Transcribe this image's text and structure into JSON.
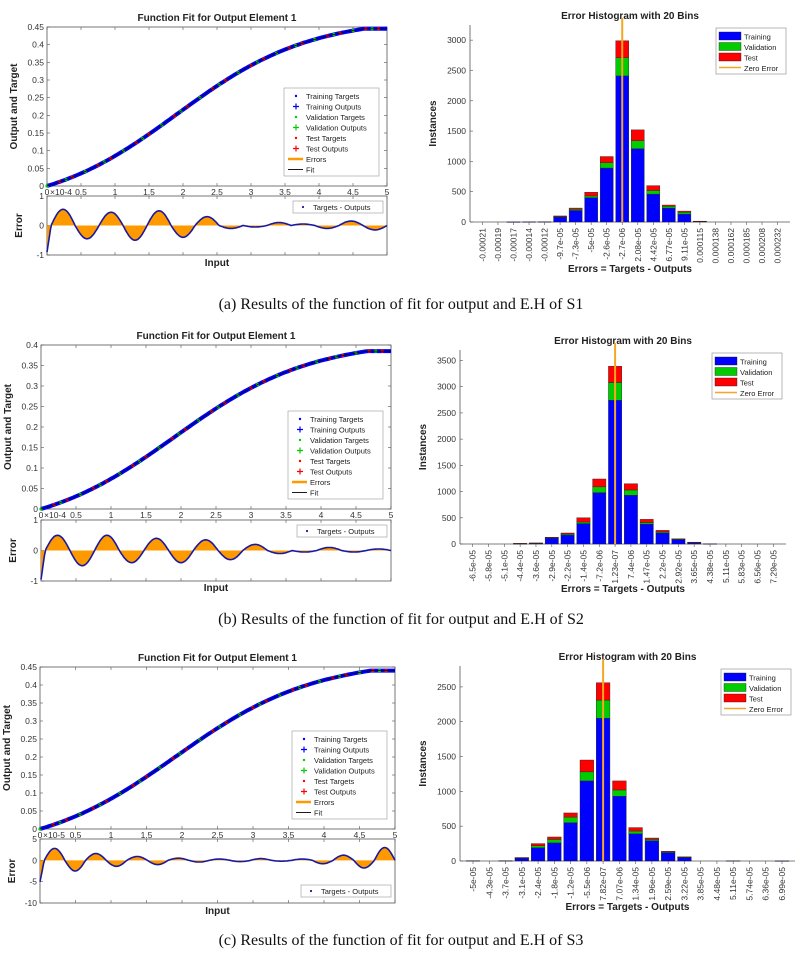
{
  "captions": [
    "(a)  Results of the function of fit for output and E.H of S1",
    "(b)  Results of the function of fit for output and E.H of S2",
    "(c)  Results of the function of fit for output and E.H of S3"
  ],
  "colors": {
    "training": "#0000ff",
    "validation": "#00cc00",
    "test": "#ff0000",
    "zero_error": "#f5a623",
    "errors_fill": "#ff9900",
    "fit": "#000000"
  },
  "chart_data": [
    {
      "id": "s1-fit",
      "type": "line",
      "title": "Function Fit for Output Element 1",
      "xlabel": "Input",
      "ylabel": "Output and Target",
      "xlim": [
        0,
        5
      ],
      "ylim": [
        0,
        0.45
      ],
      "xticks": [
        "0",
        "0.5",
        "1",
        "1.5",
        "2",
        "2.5",
        "3",
        "3.5",
        "4",
        "4.5",
        "5"
      ],
      "yticks": [
        "0",
        "0.05",
        "0.1",
        "0.15",
        "0.2",
        "0.25",
        "0.3",
        "0.35",
        "0.4",
        "0.45"
      ],
      "y_max_value": 0.445,
      "legend": [
        "Training Targets",
        "Training Outputs",
        "Validation Targets",
        "Validation Outputs",
        "Test Targets",
        "Test Outputs",
        "Errors",
        "Fit"
      ],
      "legend_position": "bottom-right",
      "error_subplot": {
        "ylabel": "Error",
        "yticks": [
          "-1",
          "0",
          "1"
        ],
        "ylim": [
          -1,
          1
        ],
        "scale_label": "×10^-4",
        "legend": [
          "Targets - Outputs"
        ],
        "legend_position": "top-right",
        "oscillation": {
          "peaks": [
            0.55,
            -0.45,
            0.45,
            -0.5,
            0.5,
            -0.4,
            0.3,
            -0.1,
            -0.05,
            0.1,
            0.05,
            -0.1,
            0.15,
            -0.15
          ],
          "start_value": -0.9
        }
      }
    },
    {
      "id": "s1-hist",
      "type": "bar",
      "title": "Error Histogram with 20 Bins",
      "xlabel": "Errors = Targets - Outputs",
      "ylabel": "Instances",
      "ylim": [
        0,
        3250
      ],
      "yticks": [
        "0",
        "500",
        "1000",
        "1500",
        "2000",
        "2500",
        "3000"
      ],
      "categories": [
        "-0.00021",
        "-0.00019",
        "-0.00017",
        "-0.00014",
        "-0.00012",
        "-9.7e-05",
        "-7.3e-05",
        "-5e-05",
        "-2.6e-05",
        "-2.7e-06",
        "2.08e-05",
        "4.42e-05",
        "6.77e-05",
        "9.11e-05",
        "0.000115",
        "0.000138",
        "0.000162",
        "0.000185",
        "0.000208",
        "0.000232"
      ],
      "series": [
        {
          "name": "Training",
          "values": [
            0,
            0,
            2,
            3,
            5,
            80,
            190,
            400,
            890,
            2410,
            1210,
            460,
            230,
            130,
            10,
            0,
            0,
            0,
            0,
            0
          ]
        },
        {
          "name": "Validation",
          "values": [
            0,
            0,
            0,
            0,
            0,
            10,
            20,
            30,
            90,
            300,
            130,
            60,
            30,
            30,
            2,
            0,
            0,
            0,
            0,
            0
          ]
        },
        {
          "name": "Test",
          "values": [
            0,
            0,
            0,
            0,
            0,
            10,
            20,
            60,
            100,
            280,
            180,
            80,
            20,
            20,
            2,
            0,
            0,
            0,
            0,
            0
          ]
        }
      ],
      "zero_error_bin": 9,
      "legend": [
        "Training",
        "Validation",
        "Test",
        "Zero Error"
      ],
      "legend_position": "top-right"
    },
    {
      "id": "s2-fit",
      "type": "line",
      "title": "Function Fit for Output Element 1",
      "xlabel": "Input",
      "ylabel": "Output and Target",
      "xlim": [
        0,
        5
      ],
      "ylim": [
        0,
        0.4
      ],
      "xticks": [
        "0",
        "0.5",
        "1",
        "1.5",
        "2",
        "2.5",
        "3",
        "3.5",
        "4",
        "4.5",
        "5"
      ],
      "yticks": [
        "0",
        "0.05",
        "0.1",
        "0.15",
        "0.2",
        "0.25",
        "0.3",
        "0.35",
        "0.4"
      ],
      "y_max_value": 0.385,
      "legend": [
        "Training Targets",
        "Training Outputs",
        "Validation Targets",
        "Validation Outputs",
        "Test Targets",
        "Test Outputs",
        "Errors",
        "Fit"
      ],
      "legend_position": "bottom-right",
      "error_subplot": {
        "ylabel": "Error",
        "yticks": [
          "-1",
          "0",
          "1"
        ],
        "ylim": [
          -1,
          1
        ],
        "scale_label": "×10^-4",
        "legend": [
          "Targets - Outputs"
        ],
        "legend_position": "top-right",
        "oscillation": {
          "peaks": [
            0.5,
            -0.5,
            0.5,
            -0.4,
            0.4,
            -0.4,
            0.35,
            -0.3,
            0.2,
            -0.1,
            -0.05,
            0.1,
            -0.05,
            0.05
          ],
          "start_value": -0.95
        }
      }
    },
    {
      "id": "s2-hist",
      "type": "bar",
      "title": "Error Histogram with 20 Bins",
      "xlabel": "Errors = Targets - Outputs",
      "ylabel": "Instances",
      "ylim": [
        0,
        3700
      ],
      "yticks": [
        "0",
        "500",
        "1000",
        "1500",
        "2000",
        "2500",
        "3000",
        "3500"
      ],
      "categories": [
        "-6.5e-05",
        "-5.8e-05",
        "-5.1e-05",
        "-4.4e-05",
        "-3.6e-05",
        "-2.9e-05",
        "-2.2e-05",
        "-1.4e-05",
        "-7.2e-06",
        "1.23e-07",
        "7.4e-06",
        "1.47e-05",
        "2.2e-05",
        "2.92e-05",
        "3.65e-05",
        "4.38e-05",
        "5.11e-05",
        "5.83e-05",
        "6.56e-05",
        "7.29e-05"
      ],
      "series": [
        {
          "name": "Training",
          "values": [
            0,
            0,
            0,
            8,
            15,
            110,
            170,
            390,
            980,
            2740,
            930,
            380,
            210,
            80,
            25,
            5,
            0,
            0,
            0,
            0
          ]
        },
        {
          "name": "Validation",
          "values": [
            0,
            0,
            0,
            2,
            3,
            10,
            20,
            30,
            110,
            340,
            100,
            30,
            20,
            10,
            5,
            0,
            0,
            0,
            0,
            0
          ]
        },
        {
          "name": "Test",
          "values": [
            0,
            0,
            0,
            2,
            2,
            10,
            20,
            80,
            150,
            310,
            120,
            60,
            30,
            10,
            5,
            0,
            0,
            0,
            0,
            0
          ]
        }
      ],
      "zero_error_bin": 9,
      "legend": [
        "Training",
        "Validation",
        "Test",
        "Zero Error"
      ],
      "legend_position": "top-right"
    },
    {
      "id": "s3-fit",
      "type": "line",
      "title": "Function Fit for Output Element 1",
      "xlabel": "Input",
      "ylabel": "Output and Target",
      "xlim": [
        0,
        5
      ],
      "ylim": [
        0,
        0.45
      ],
      "xticks": [
        "0",
        "0.5",
        "1",
        "1.5",
        "2",
        "2.5",
        "3",
        "3.5",
        "4",
        "4.5",
        "5"
      ],
      "yticks": [
        "0",
        "0.05",
        "0.1",
        "0.15",
        "0.2",
        "0.25",
        "0.3",
        "0.35",
        "0.4",
        "0.45"
      ],
      "y_max_value": 0.44,
      "legend": [
        "Training Targets",
        "Training Outputs",
        "Validation Targets",
        "Validation Outputs",
        "Test Targets",
        "Test Outputs",
        "Errors",
        "Fit"
      ],
      "legend_position": "bottom-right",
      "error_subplot": {
        "ylabel": "Error",
        "yticks": [
          "-10",
          "-5",
          "0",
          "5"
        ],
        "ylim": [
          -10,
          5
        ],
        "scale_label": "×10^-5",
        "legend": [
          "Targets - Outputs"
        ],
        "legend_position": "bottom-right",
        "oscillation": {
          "peaks": [
            2.8,
            -2.5,
            1.6,
            -1.4,
            0.9,
            -1.0,
            0.5,
            -0.4,
            0.3,
            -0.3,
            0.4,
            -0.2,
            0.3,
            -0.8,
            1.2,
            -1.8,
            3
          ],
          "start_value": -5
        }
      }
    },
    {
      "id": "s3-hist",
      "type": "bar",
      "title": "Error Histogram with 20 Bins",
      "xlabel": "Errors = Targets - Outputs",
      "ylabel": "Instances",
      "ylim": [
        0,
        2800
      ],
      "yticks": [
        "0",
        "500",
        "1000",
        "1500",
        "2000",
        "2500"
      ],
      "categories": [
        "-5e-05",
        "-4.3e-05",
        "-3.7e-05",
        "-3.1e-05",
        "-2.4e-05",
        "-1.8e-05",
        "-1.2e-05",
        "-5.5e-06",
        "7.82e-07",
        "7.07e-06",
        "1.34e-05",
        "1.96e-05",
        "2.59e-05",
        "3.22e-05",
        "3.85e-05",
        "4.48e-05",
        "5.11e-05",
        "5.74e-05",
        "6.36e-05",
        "6.99e-05"
      ],
      "series": [
        {
          "name": "Training",
          "values": [
            5,
            0,
            5,
            40,
            190,
            260,
            550,
            1150,
            2050,
            930,
            390,
            290,
            120,
            50,
            0,
            0,
            3,
            0,
            0,
            2
          ]
        },
        {
          "name": "Validation",
          "values": [
            0,
            0,
            0,
            5,
            30,
            50,
            80,
            130,
            260,
            90,
            40,
            20,
            10,
            5,
            0,
            0,
            0,
            0,
            0,
            0
          ]
        },
        {
          "name": "Test",
          "values": [
            0,
            0,
            0,
            5,
            30,
            35,
            60,
            170,
            250,
            130,
            50,
            20,
            10,
            5,
            0,
            0,
            0,
            0,
            0,
            0
          ]
        }
      ],
      "zero_error_bin": 8,
      "legend": [
        "Training",
        "Validation",
        "Test",
        "Zero Error"
      ],
      "legend_position": "top-right"
    }
  ]
}
